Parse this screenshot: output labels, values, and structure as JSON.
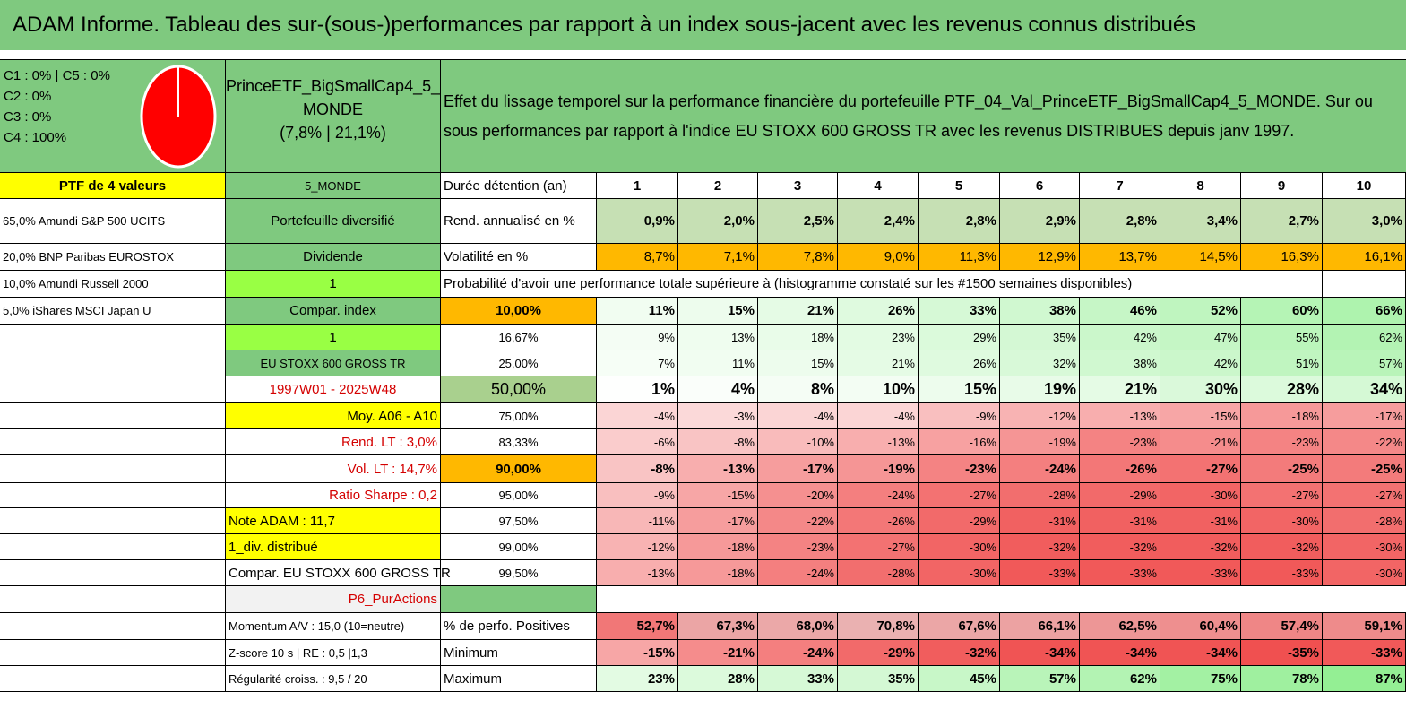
{
  "title": "ADAM Informe. Tableau des sur-(sous-)performances par rapport à un index sous-jacent avec les revenus connus distribués",
  "allocation": {
    "lines": [
      "C1 : 0% | C5 : 0%",
      "C2 : 0%",
      "C3 : 0%",
      "C4 : 100%"
    ],
    "pie_color": "#ff0000"
  },
  "fund": {
    "name_line1": "PrinceETF_BigSmallCap4_5_",
    "name_line2": "MONDE",
    "stats": "(7,8% | 21,1%)"
  },
  "description": {
    "line1": "Effet du lissage temporel sur la performance financière du portefeuille PTF_04_Val_PrinceETF_BigSmallCap4_5_MONDE. Sur ou",
    "line2": "sous performances par rapport à l'indice EU STOXX 600 GROSS TR avec les revenus DISTRIBUES depuis janv 1997."
  },
  "left_col": [
    "PTF de 4 valeurs",
    "65,0% Amundi S&P 500 UCITS",
    "20,0% BNP Paribas EUROSTOX",
    "10,0% Amundi Russell 2000",
    "5,0% iShares MSCI Japan U"
  ],
  "mid_col": [
    "5_MONDE",
    "Portefeuille diversifié",
    "Dividende",
    "1",
    "Compar. index",
    "1",
    "EU STOXX 600 GROSS TR",
    "1997W01 - 2025W48",
    "Moy. A06 - A10",
    "Rend. LT : 3,0%",
    "Vol. LT : 14,7%",
    "Ratio Sharpe : 0,2",
    "Note ADAM : 11,7",
    "1_div. distribué",
    "Compar. EU STOXX 600 GROSS TR",
    "P6_PurActions",
    "Momentum A/V : 15,0 (10=neutre)",
    "Z-score 10 s | RE : 0,5 |1,3",
    "Régularité croiss. : 9,5 / 20"
  ],
  "years_label": "Durée détention (an)",
  "years": [
    "1",
    "2",
    "3",
    "4",
    "5",
    "6",
    "7",
    "8",
    "9",
    "10"
  ],
  "rend_label": "Rend. annualisé en %",
  "rend": [
    "0,9%",
    "2,0%",
    "2,5%",
    "2,4%",
    "2,8%",
    "2,9%",
    "2,8%",
    "3,4%",
    "2,7%",
    "3,0%"
  ],
  "vol_label": "Volatilité en %",
  "vol": [
    "8,7%",
    "7,1%",
    "7,8%",
    "9,0%",
    "11,3%",
    "12,9%",
    "13,7%",
    "14,5%",
    "16,3%",
    "16,1%"
  ],
  "prob_title": "Probabilité d'avoir une performance totale supérieure à (histogramme constaté sur les #1500 semaines disponibles)",
  "quantiles": [
    {
      "label": "10,00%",
      "values": [
        "11%",
        "15%",
        "21%",
        "26%",
        "33%",
        "38%",
        "46%",
        "52%",
        "60%",
        "66%"
      ]
    },
    {
      "label": "16,67%",
      "values": [
        "9%",
        "13%",
        "18%",
        "23%",
        "29%",
        "35%",
        "42%",
        "47%",
        "55%",
        "62%"
      ]
    },
    {
      "label": "25,00%",
      "values": [
        "7%",
        "11%",
        "15%",
        "21%",
        "26%",
        "32%",
        "38%",
        "42%",
        "51%",
        "57%"
      ]
    },
    {
      "label": "50,00%",
      "values": [
        "1%",
        "4%",
        "8%",
        "10%",
        "15%",
        "19%",
        "21%",
        "30%",
        "28%",
        "34%"
      ]
    },
    {
      "label": "75,00%",
      "values": [
        "-4%",
        "-3%",
        "-4%",
        "-4%",
        "-9%",
        "-12%",
        "-13%",
        "-15%",
        "-18%",
        "-17%"
      ]
    },
    {
      "label": "83,33%",
      "values": [
        "-6%",
        "-8%",
        "-10%",
        "-13%",
        "-16%",
        "-19%",
        "-23%",
        "-21%",
        "-23%",
        "-22%"
      ]
    },
    {
      "label": "90,00%",
      "values": [
        "-8%",
        "-13%",
        "-17%",
        "-19%",
        "-23%",
        "-24%",
        "-26%",
        "-27%",
        "-25%",
        "-25%"
      ]
    },
    {
      "label": "95,00%",
      "values": [
        "-9%",
        "-15%",
        "-20%",
        "-24%",
        "-27%",
        "-28%",
        "-29%",
        "-30%",
        "-27%",
        "-27%"
      ]
    },
    {
      "label": "97,50%",
      "values": [
        "-11%",
        "-17%",
        "-22%",
        "-26%",
        "-29%",
        "-31%",
        "-31%",
        "-31%",
        "-30%",
        "-28%"
      ]
    },
    {
      "label": "99,00%",
      "values": [
        "-12%",
        "-18%",
        "-23%",
        "-27%",
        "-30%",
        "-32%",
        "-32%",
        "-32%",
        "-32%",
        "-30%"
      ]
    },
    {
      "label": "99,50%",
      "values": [
        "-13%",
        "-18%",
        "-24%",
        "-28%",
        "-30%",
        "-33%",
        "-33%",
        "-33%",
        "-33%",
        "-30%"
      ]
    }
  ],
  "pos_label": "% de perfo. Positives",
  "pos": [
    "52,7%",
    "67,3%",
    "68,0%",
    "70,8%",
    "67,6%",
    "66,1%",
    "62,5%",
    "60,4%",
    "57,4%",
    "59,1%"
  ],
  "min_label": "Minimum",
  "min": [
    "-15%",
    "-21%",
    "-24%",
    "-29%",
    "-32%",
    "-34%",
    "-34%",
    "-34%",
    "-35%",
    "-33%"
  ],
  "max_label": "Maximum",
  "max": [
    "23%",
    "28%",
    "33%",
    "35%",
    "45%",
    "57%",
    "62%",
    "75%",
    "78%",
    "87%"
  ]
}
